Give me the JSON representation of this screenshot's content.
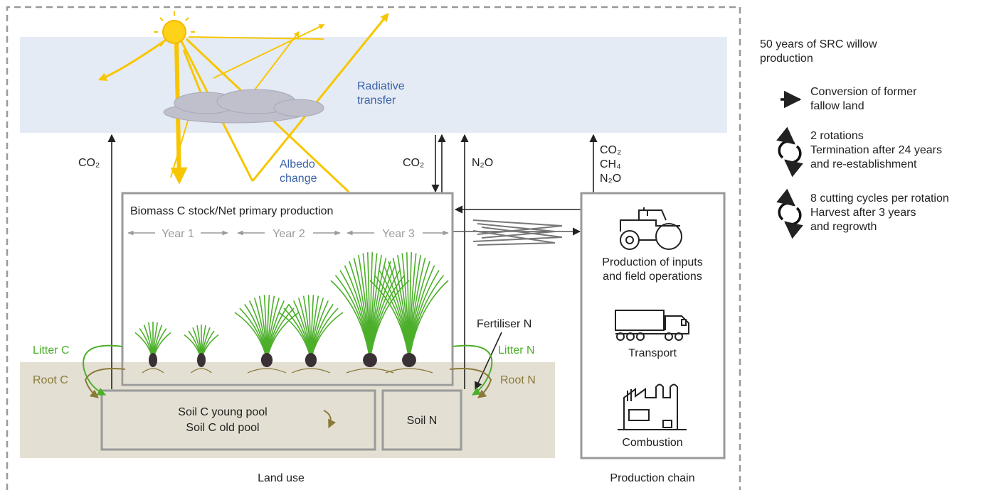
{
  "sky": {
    "label": [
      "Radiative",
      "transfer"
    ]
  },
  "albedo": {
    "label": [
      "Albedo",
      "change"
    ]
  },
  "fluxes": {
    "co2_land": "CO₂",
    "co2_exchange": "CO₂",
    "n2o": "N₂O",
    "chain": [
      "CO₂",
      "CH₄",
      "N₂O"
    ]
  },
  "biomass": {
    "title": "Biomass C stock/Net primary production",
    "years": [
      "Year 1",
      "Year 2",
      "Year 3"
    ]
  },
  "flows": {
    "litter_c": "Litter C",
    "root_c": "Root C",
    "litter_n": "Litter N",
    "root_n": "Root N",
    "fertiliser": "Fertiliser N"
  },
  "soil_c": [
    "Soil C young pool",
    "Soil C old pool"
  ],
  "soil_n": "Soil N",
  "chain": {
    "inputs": [
      "Production of inputs",
      "and field operations"
    ],
    "transport": "Transport",
    "combustion": "Combustion"
  },
  "footer": {
    "land_use": "Land use",
    "production_chain": "Production chain"
  },
  "legend": {
    "title": [
      "50 years of SRC willow",
      "production"
    ],
    "items": [
      [
        "Conversion of former",
        "fallow land"
      ],
      [
        "2 rotations",
        "Termination after 24 years",
        "and re-establishment"
      ],
      [
        "8 cutting cycles per rotation",
        "Harvest after 3 years",
        "and regrowth"
      ]
    ]
  }
}
